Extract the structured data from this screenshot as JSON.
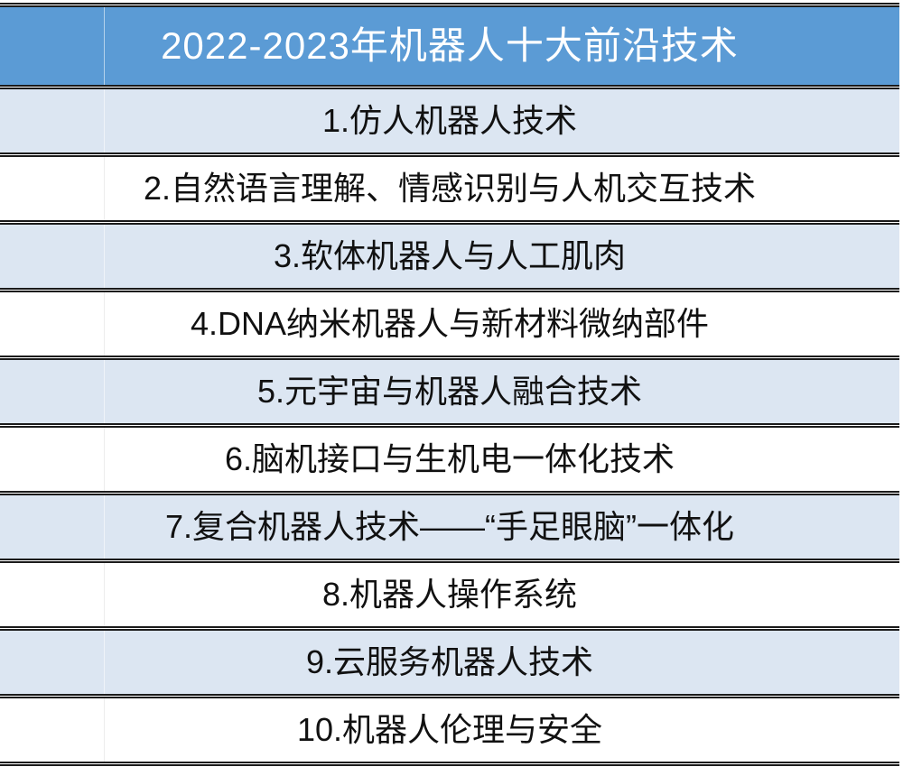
{
  "table": {
    "title": "2022-2023年机器人十大前沿技术",
    "rows": [
      {
        "label": "1.仿人机器人技术"
      },
      {
        "label": "2.自然语言理解、情感识别与人机交互技术"
      },
      {
        "label": "3.软体机器人与人工肌肉"
      },
      {
        "label": "4.DNA纳米机器人与新材料微纳部件"
      },
      {
        "label": "5.元宇宙与机器人融合技术"
      },
      {
        "label": "6.脑机接口与生机电一体化技术"
      },
      {
        "label": "7.复合机器人技术——“手足眼脑”一体化"
      },
      {
        "label": "8.机器人操作系统"
      },
      {
        "label": "9.云服务机器人技术"
      },
      {
        "label": "10.机器人伦理与安全"
      }
    ]
  },
  "colors": {
    "header_bg": "#5b9bd5",
    "header_text": "#ffffff",
    "row_bg": "#ffffff",
    "row_alt_bg": "#dce6f2",
    "row_text": "#111111",
    "border": "#1b1b1b"
  }
}
